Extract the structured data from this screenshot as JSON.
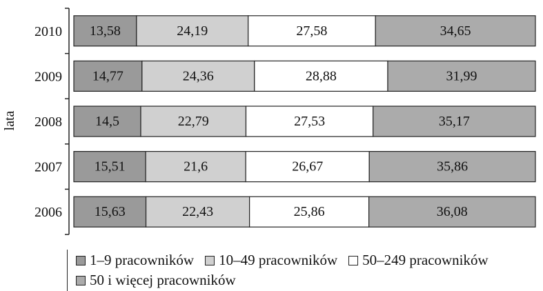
{
  "chart_data": {
    "type": "bar",
    "orientation": "horizontal",
    "stacked": true,
    "ylabel": "lata",
    "xlabel": "",
    "title": "",
    "categories": [
      "2010",
      "2009",
      "2008",
      "2007",
      "2006"
    ],
    "series": [
      {
        "name": "1–9 pracowników",
        "color": "#9a9a9a",
        "values": [
          13.58,
          14.77,
          14.5,
          15.51,
          15.63
        ],
        "labels": [
          "13,58",
          "14,77",
          "14,5",
          "15,51",
          "15,63"
        ]
      },
      {
        "name": "10–49 pracowników",
        "color": "#d0d0d0",
        "values": [
          24.19,
          24.36,
          22.79,
          21.6,
          22.43
        ],
        "labels": [
          "24,19",
          "24,36",
          "22,79",
          "21,6",
          "22,43"
        ]
      },
      {
        "name": "50–249 pracowników",
        "color": "#ffffff",
        "values": [
          27.58,
          28.88,
          27.53,
          26.67,
          25.86
        ],
        "labels": [
          "27,58",
          "28,88",
          "27,53",
          "26,67",
          "25,86"
        ]
      },
      {
        "name": "50 i więcej pracowników",
        "color": "#ababab",
        "values": [
          34.65,
          31.99,
          35.17,
          35.86,
          36.08
        ],
        "labels": [
          "34,65",
          "31,99",
          "35,17",
          "35,86",
          "36,08"
        ]
      }
    ],
    "legend_position": "bottom",
    "grid": false
  }
}
